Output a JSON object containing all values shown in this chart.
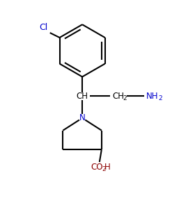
{
  "bg_color": "#ffffff",
  "bond_color": "#000000",
  "text_color_black": "#000000",
  "text_color_blue": "#0000cd",
  "text_color_red": "#8b0000",
  "cl_label": "Cl",
  "n_label": "N",
  "ch_label": "CH",
  "ch2_label": "CH",
  "ch2_sub": "2",
  "nh2_label": "NH",
  "nh2_sub": "2",
  "co2h_co": "CO",
  "co2h_sub": "2",
  "co2h_h": "H",
  "figw": 2.57,
  "figh": 3.05,
  "dpi": 100
}
